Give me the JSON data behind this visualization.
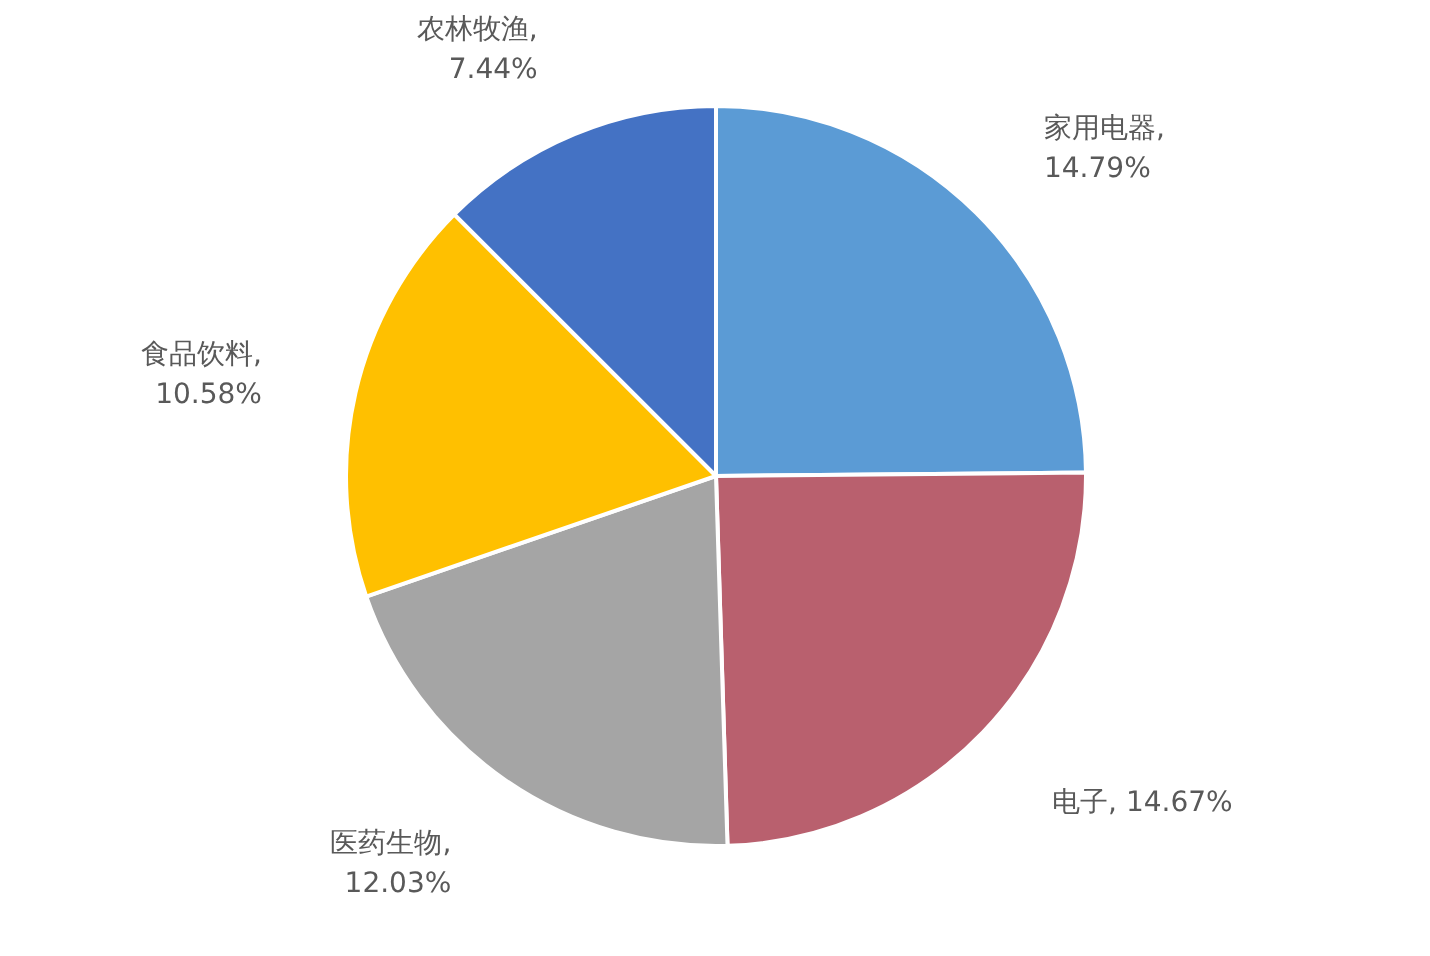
{
  "chart_data": {
    "type": "pie",
    "categories": [
      "家用电器",
      "电子",
      "医药生物",
      "食品饮料",
      "农林牧渔"
    ],
    "values": [
      14.79,
      14.67,
      12.03,
      10.58,
      7.44
    ],
    "value_labels": [
      ", 14.79%",
      ", 14.67%",
      ", 12.03%",
      ", 10.58%",
      ", 7.44%"
    ],
    "colors": [
      "#5b9bd5",
      "#b9606e",
      "#a5a5a5",
      "#ffc000",
      "#4472c4"
    ]
  }
}
